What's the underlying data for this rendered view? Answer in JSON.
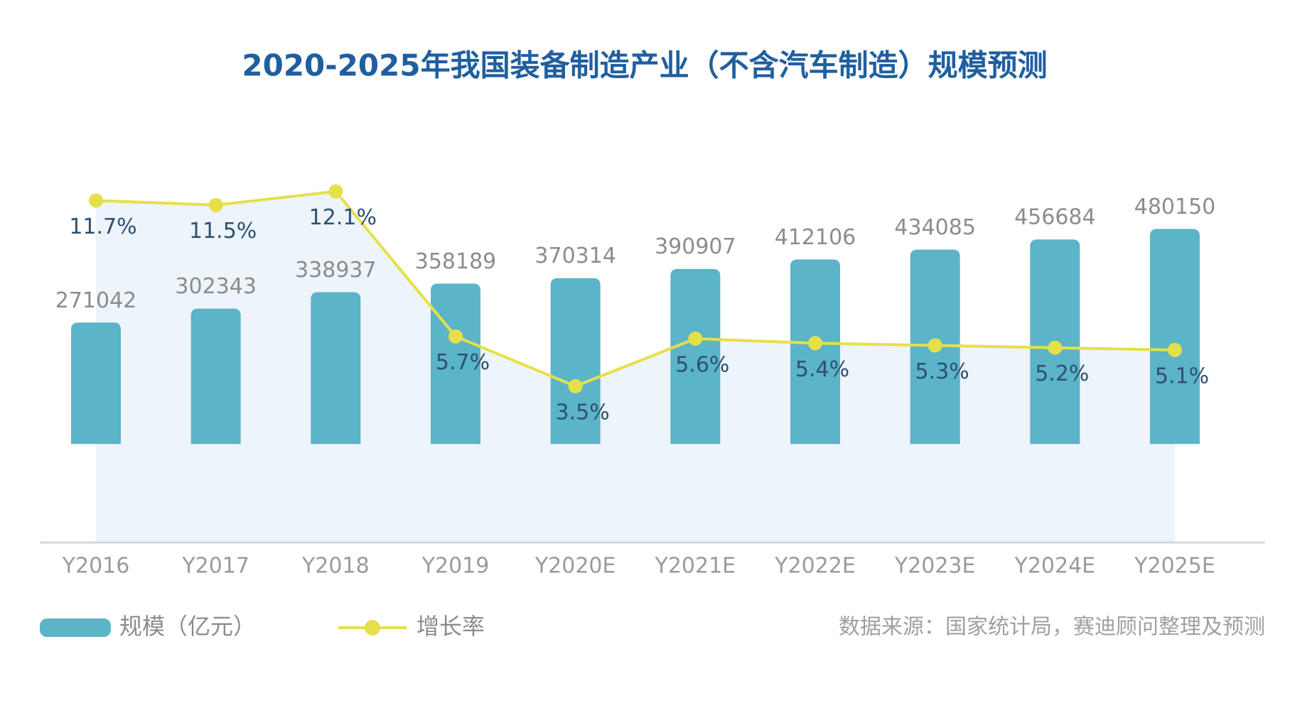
{
  "chart_data": {
    "type": "bar",
    "title": "2020-2025年我国装备制造产业（不含汽车制造）规模预测",
    "categories": [
      "Y2016",
      "Y2017",
      "Y2018",
      "Y2019",
      "Y2020E",
      "Y2021E",
      "Y2022E",
      "Y2023E",
      "Y2024E",
      "Y2025E"
    ],
    "series": [
      {
        "name": "规模（亿元）",
        "color": "#5bb4c8",
        "values": [
          271042,
          302343,
          338937,
          358189,
          370314,
          390907,
          412106,
          434085,
          456684,
          480150
        ]
      },
      {
        "name": "增长率",
        "color": "#e5e04a",
        "type": "line",
        "axis": "y2",
        "values": [
          11.7,
          11.5,
          12.1,
          5.7,
          3.5,
          5.6,
          5.4,
          5.3,
          5.2,
          5.1
        ],
        "value_labels": [
          "11.7%",
          "11.5%",
          "12.1%",
          "5.7%",
          "3.5%",
          "5.6%",
          "5.4%",
          "5.3%",
          "5.2%",
          "5.1%"
        ]
      }
    ],
    "ylim": [
      -220000,
      660000
    ],
    "y2lim": [
      -3.4,
      14
    ],
    "source": "数据来源：国家统计局，赛迪顾问整理及预测"
  }
}
